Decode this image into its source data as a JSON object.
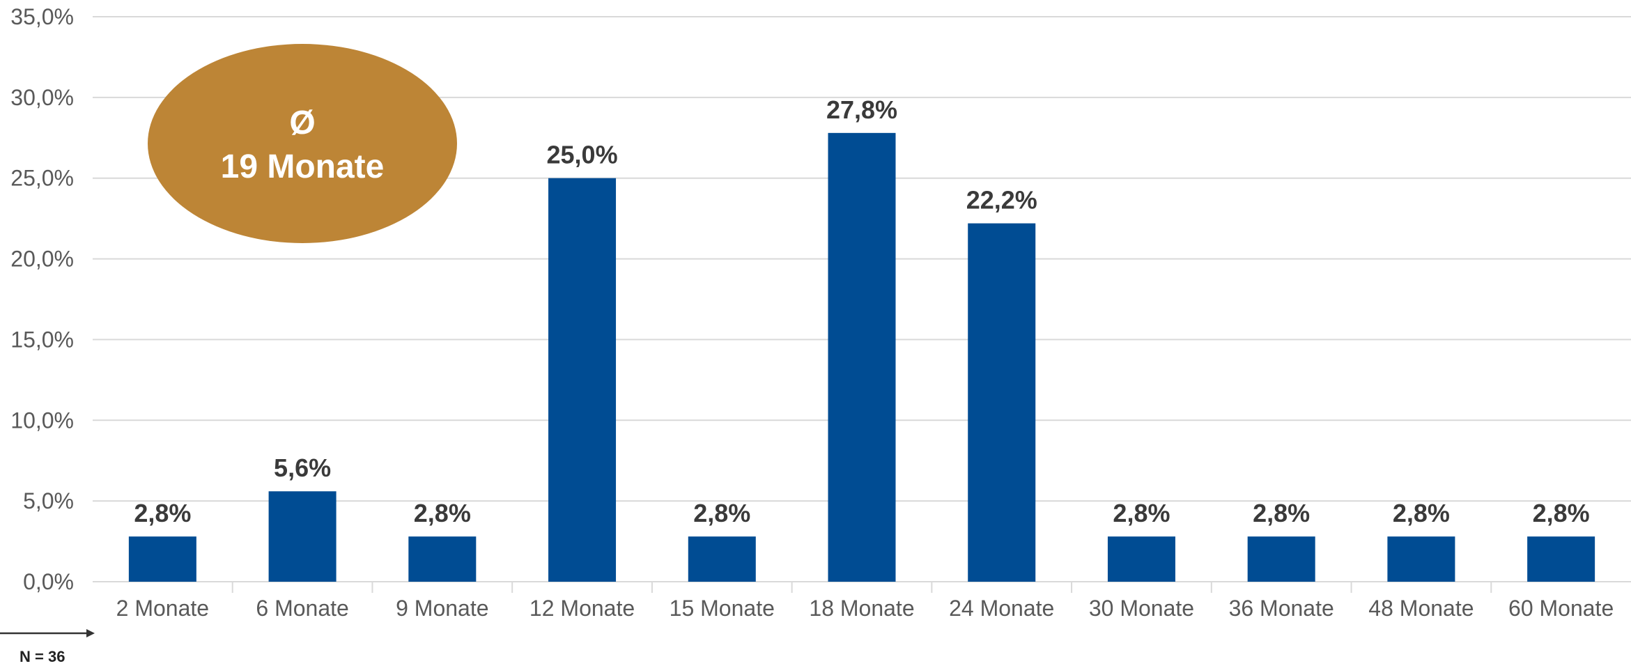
{
  "chart_data": {
    "type": "bar",
    "categories": [
      "2 Monate",
      "6 Monate",
      "9 Monate",
      "12 Monate",
      "15 Monate",
      "18 Monate",
      "24 Monate",
      "30 Monate",
      "36 Monate",
      "48 Monate",
      "60 Monate"
    ],
    "values": [
      2.8,
      5.6,
      2.8,
      25.0,
      2.8,
      27.8,
      22.2,
      2.8,
      2.8,
      2.8,
      2.8
    ],
    "data_labels": [
      "2,8%",
      "5,6%",
      "2,8%",
      "25,0%",
      "2,8%",
      "27,8%",
      "22,2%",
      "2,8%",
      "2,8%",
      "2,8%",
      "2,8%"
    ],
    "y_ticks": [
      0,
      5,
      10,
      15,
      20,
      25,
      30,
      35
    ],
    "y_tick_labels": [
      "0,0%",
      "5,0%",
      "10,0%",
      "15,0%",
      "20,0%",
      "25,0%",
      "30,0%",
      "35,0%"
    ],
    "ylim": [
      0,
      35
    ],
    "grid": true,
    "colors": {
      "bar": "#004c93",
      "grid": "#d9d9d9",
      "average_badge": "#bd8536"
    }
  },
  "average_badge": {
    "symbol": "Ø",
    "text": "19 Monate"
  },
  "sample_size": "N = 36"
}
